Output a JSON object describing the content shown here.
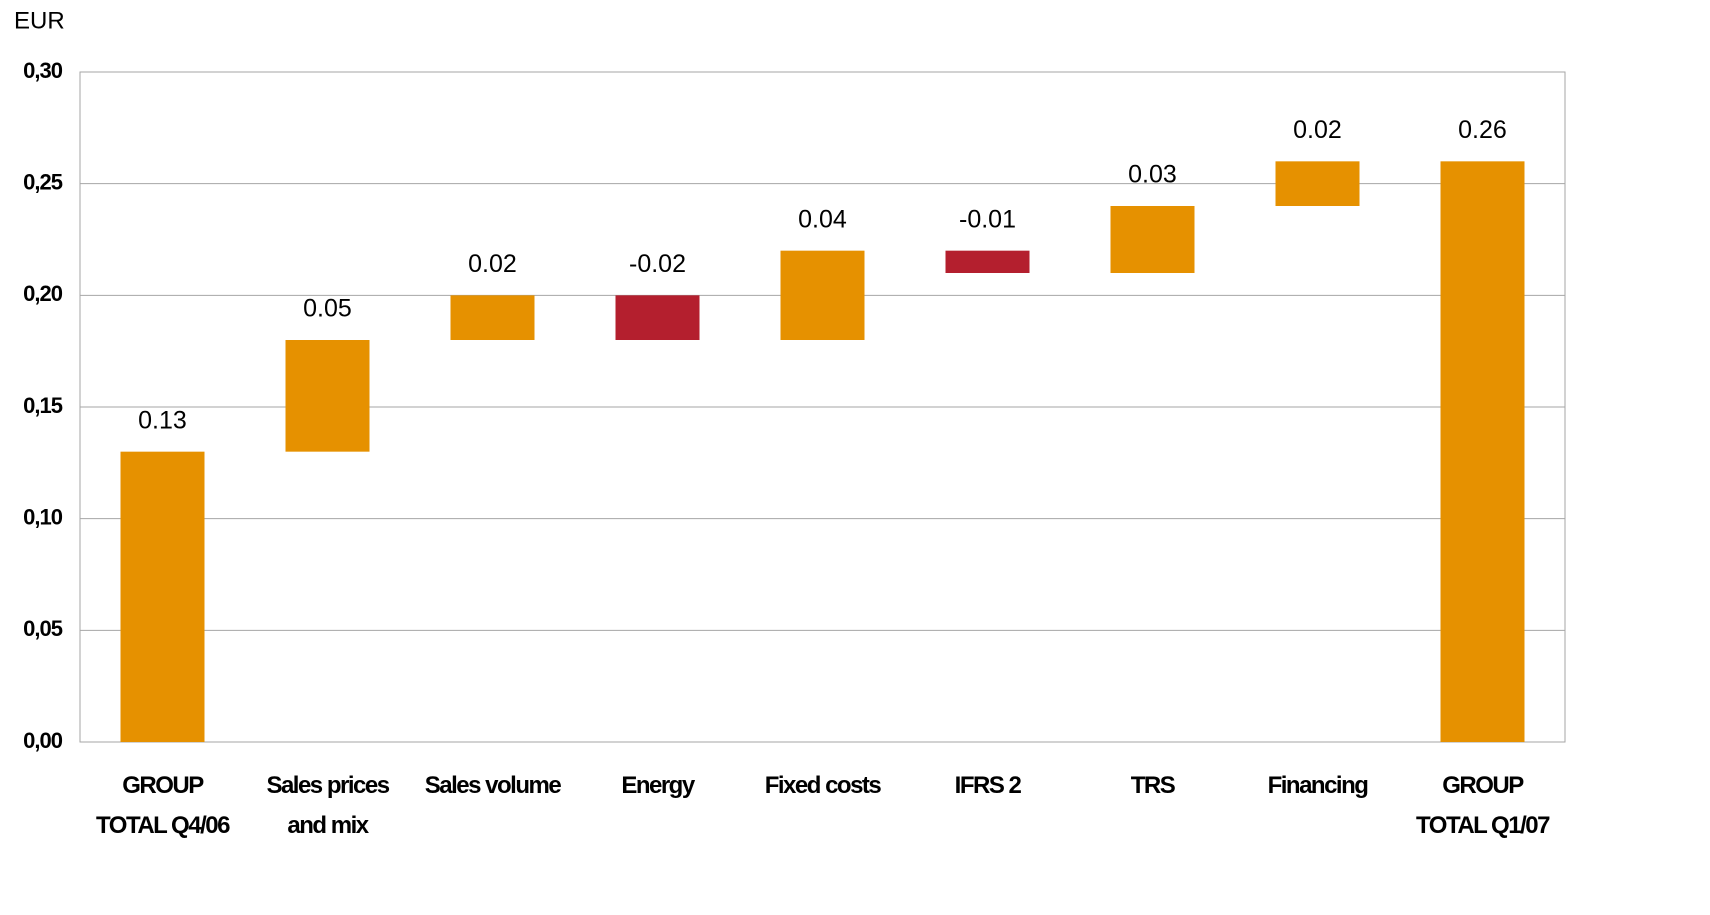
{
  "chart_data": {
    "type": "waterfall",
    "y_label": "EUR",
    "categories": [
      "GROUP\nTOTAL Q4/06",
      "Sales prices\nand mix",
      "Sales volume",
      "Energy",
      "Fixed costs",
      "IFRS 2",
      "TRS",
      "Financing",
      "GROUP\nTOTAL Q1/07"
    ],
    "values": [
      0.13,
      0.05,
      0.02,
      -0.02,
      0.04,
      -0.01,
      0.03,
      0.02,
      0.26
    ],
    "is_total": [
      true,
      false,
      false,
      false,
      false,
      false,
      false,
      false,
      true
    ],
    "color": "#e69100",
    "negative_color": "#b41f2e",
    "ylim": [
      0,
      0.3
    ],
    "yticks": [
      {
        "value": 0,
        "label": "0,00"
      },
      {
        "value": 0.05,
        "label": "0,05"
      },
      {
        "value": 0.1,
        "label": "0,10"
      },
      {
        "value": 0.15,
        "label": "0,15"
      },
      {
        "value": 0.2,
        "label": "0,20"
      },
      {
        "value": 0.25,
        "label": "0,25"
      },
      {
        "value": 0.3,
        "label": "0,30"
      }
    ],
    "grid": true
  }
}
